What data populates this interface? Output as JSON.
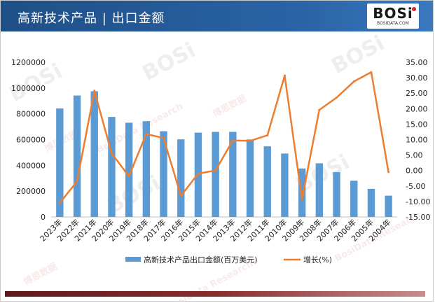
{
  "header": {
    "title": "高新技术产品 | 出口金额"
  },
  "brand": {
    "logo_text": "BOSi",
    "site": "BOSIDATA.COM",
    "accent_color": "#d9262b"
  },
  "watermark": {
    "logo": "BOSi",
    "cn": "博思数据",
    "en": "BosiData Research"
  },
  "colors": {
    "bar": "#5b9bd5",
    "line": "#ed7d31",
    "header": "#2a64a6"
  },
  "chart_data": {
    "type": "bar",
    "categories": [
      "2023年",
      "2022年",
      "2021年",
      "2020年",
      "2019年",
      "2018年",
      "2017年",
      "2016年",
      "2015年",
      "2014年",
      "2013年",
      "2012年",
      "2011年",
      "2010年",
      "2009年",
      "2008年",
      "2007年",
      "2006年",
      "2005年",
      "2004年"
    ],
    "series": [
      {
        "name": "高新技术产品出口金额(百万美元)",
        "type": "bar",
        "axis": "left",
        "values": [
          842000,
          942000,
          975000,
          776000,
          731000,
          743000,
          665000,
          602000,
          654000,
          660000,
          660000,
          601000,
          548000,
          492000,
          376000,
          416000,
          348000,
          281000,
          218000,
          165000
        ]
      },
      {
        "name": "增长(%)",
        "type": "line",
        "axis": "right",
        "values": [
          -10.5,
          -3.5,
          25.8,
          5.5,
          -1.8,
          11.8,
          10.5,
          -8.2,
          -1.0,
          0.0,
          9.7,
          9.6,
          11.4,
          30.7,
          -9.3,
          19.6,
          23.6,
          28.8,
          31.8,
          -0.5
        ]
      }
    ],
    "y_left": {
      "ylim": [
        0,
        1200000
      ],
      "ticks": [
        "0",
        "200000",
        "400000",
        "600000",
        "800000",
        "1000000",
        "1200000"
      ]
    },
    "y_right": {
      "ylim": [
        -15,
        35
      ],
      "ticks": [
        "-15.00",
        "-10.00",
        "-5.00",
        "0.00",
        "5.00",
        "10.00",
        "15.00",
        "20.00",
        "25.00",
        "30.00",
        "35.00"
      ]
    },
    "legend": {
      "position": "bottom",
      "items": [
        "高新技术产品出口金额(百万美元)",
        "增长(%)"
      ]
    },
    "grid": false
  }
}
